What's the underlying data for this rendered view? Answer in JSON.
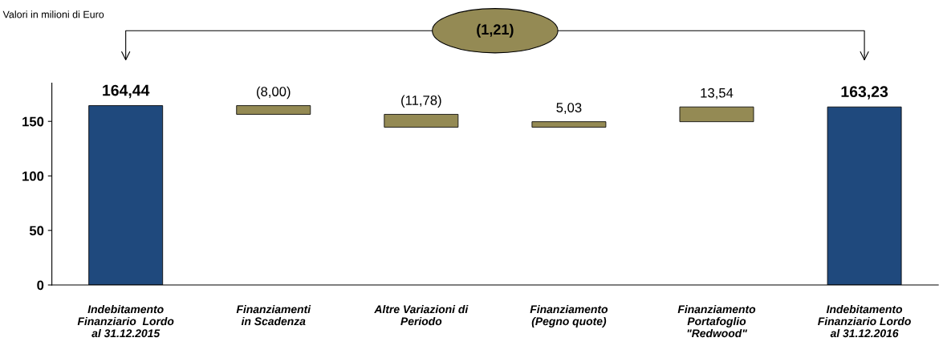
{
  "chart_data": {
    "type": "bar",
    "categories": [
      "Indebitamento\nFinanziario  Lordo\nal 31.12.2015",
      "Finanziamenti\nin Scadenza",
      "Altre Variazioni di\nPeriodo",
      "Finanziamento\n(Pegno quote)",
      "Finanziamento\nPortafoglio\n\"Redwood\"",
      "Indebitamento\nFinanziario Lordo\nal 31.12.2016"
    ],
    "values": [
      164.44,
      -8.0,
      -11.78,
      5.03,
      13.54,
      163.23
    ],
    "base": [
      0,
      164.44,
      156.44,
      144.66,
      149.69,
      0
    ],
    "colors": [
      "#1f497d",
      "#948a54",
      "#948a54",
      "#948a54",
      "#948a54",
      "#1f497d"
    ],
    "value_labels": [
      "164,44",
      "(8,00)",
      "(11,78)",
      "5,03",
      "13,54",
      "163,23"
    ],
    "ylim": [
      0,
      185
    ],
    "yticks": [
      0,
      50,
      100,
      150
    ],
    "grid": false,
    "legend": false,
    "annotations": [
      "Valori in milioni di Euro",
      "(1,21)"
    ]
  }
}
